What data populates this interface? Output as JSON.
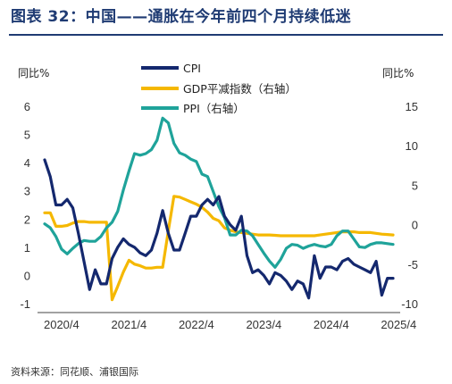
{
  "title": "图表  32：中国——通胀在今年前四个月持续低迷",
  "source": "资料来源：同花顺、浦银国际",
  "chart_data": {
    "type": "line",
    "left_axis_label": "同比%",
    "right_axis_label": "同比%",
    "y_left": {
      "min": -1,
      "max": 6,
      "ticks": [
        -1,
        0,
        1,
        2,
        3,
        4,
        5,
        6
      ]
    },
    "y_right": {
      "min": -10,
      "max": 15,
      "ticks": [
        -10,
        -5,
        0,
        5,
        10,
        15
      ]
    },
    "x_start": "2020/1",
    "x_ticks": [
      "2020/4",
      "2021/4",
      "2022/4",
      "2023/4",
      "2024/4",
      "2025/4"
    ],
    "legend_position": "top-center",
    "colors": {
      "CPI": "#14286e",
      "GDP": "#f5b800",
      "PPI": "#1fa39a"
    },
    "series": [
      {
        "name": "CPI",
        "axis": "left",
        "color": "#14286e",
        "values": [
          4.1,
          3.5,
          2.5,
          2.5,
          2.7,
          2.4,
          1.5,
          0.5,
          -0.5,
          0.2,
          -0.3,
          -0.3,
          0.6,
          1.0,
          1.3,
          1.1,
          1.0,
          0.8,
          0.7,
          0.9,
          1.5,
          2.3,
          1.5,
          0.9,
          0.9,
          1.5,
          2.1,
          2.1,
          2.5,
          2.7,
          2.5,
          2.8,
          2.1,
          1.8,
          1.6,
          2.1,
          0.7,
          0.1,
          0.2,
          0.0,
          -0.3,
          0.1,
          0.0,
          -0.2,
          -0.5,
          -0.2,
          -0.3,
          -0.8,
          0.7,
          -0.1,
          0.3,
          0.3,
          0.2,
          0.5,
          0.6,
          0.4,
          0.3,
          0.2,
          0.1,
          0.5,
          -0.7,
          -0.1,
          -0.1
        ]
      },
      {
        "name": "GDP平减指数（右轴）",
        "axis": "right",
        "color": "#f5b800",
        "values": [
          1.5,
          1.5,
          -0.2,
          -0.2,
          -0.1,
          0.2,
          0.4,
          0.4,
          0.3,
          0.3,
          0.3,
          0.3,
          -9.5,
          -7.8,
          -6.0,
          -4.5,
          -5.0,
          -5.2,
          -5.5,
          -5.5,
          -5.4,
          -5.4,
          -0.8,
          3.6,
          3.5,
          3.2,
          2.9,
          2.6,
          2.2,
          1.6,
          0.8,
          0.5,
          -0.4,
          -0.7,
          -0.9,
          -1.0,
          -1.1,
          -1.2,
          -1.3,
          -1.3,
          -1.3,
          -1.35,
          -1.4,
          -1.4,
          -1.4,
          -1.4,
          -1.4,
          -1.4,
          -1.4,
          -1.3,
          -1.2,
          -1.1,
          -1.0,
          -0.9,
          -0.9,
          -0.9,
          -1.0,
          -1.0,
          -1.0,
          -1.1,
          -1.2,
          -1.25,
          -1.3
        ]
      },
      {
        "name": "PPI（右轴）",
        "axis": "right",
        "color": "#1fa39a",
        "values": [
          0.1,
          -0.4,
          -1.5,
          -3.1,
          -3.7,
          -3.0,
          -2.4,
          -2.0,
          -2.1,
          -2.1,
          -1.5,
          -0.4,
          0.3,
          1.7,
          4.4,
          6.8,
          9.0,
          8.8,
          9.0,
          9.5,
          10.7,
          13.5,
          12.9,
          10.3,
          9.1,
          8.8,
          8.3,
          8.0,
          6.4,
          6.1,
          4.2,
          2.3,
          0.9,
          -1.3,
          -1.3,
          -0.7,
          -0.8,
          -1.4,
          -2.5,
          -3.6,
          -4.6,
          -5.4,
          -4.4,
          -3.0,
          -2.5,
          -2.6,
          -3.0,
          -2.7,
          -2.5,
          -2.7,
          -2.8,
          -2.5,
          -1.4,
          -0.8,
          -0.8,
          -1.8,
          -2.8,
          -2.9,
          -2.5,
          -2.3,
          -2.3,
          -2.4,
          -2.5
        ]
      }
    ]
  }
}
